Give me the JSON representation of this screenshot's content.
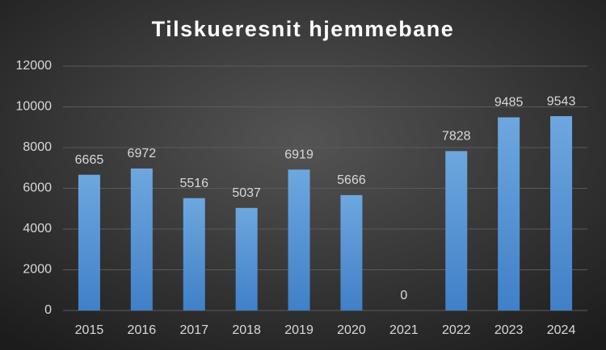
{
  "chart_data": {
    "type": "bar",
    "title": "Tilskueresnit hjemmebane",
    "categories": [
      "2015",
      "2016",
      "2017",
      "2018",
      "2019",
      "2020",
      "2021",
      "2022",
      "2023",
      "2024"
    ],
    "values": [
      6665,
      6972,
      5516,
      5037,
      6919,
      5666,
      0,
      7828,
      9485,
      9543
    ],
    "color": "#5b9bd5",
    "ylim": [
      0,
      12000
    ],
    "yticks": [
      0,
      2000,
      4000,
      6000,
      8000,
      10000,
      12000
    ],
    "grid": true
  }
}
